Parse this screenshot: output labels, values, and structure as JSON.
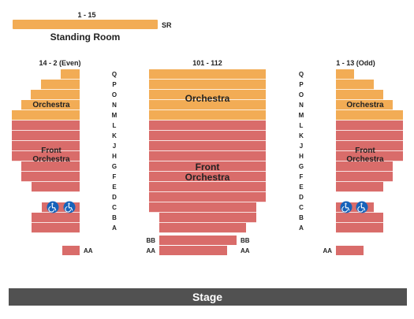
{
  "colors": {
    "orchestra": "#f2ac55",
    "front_orchestra": "#d96c6a",
    "stage": "#515151",
    "stage_text": "#ffffff",
    "label": "#222222",
    "wheelchair": "#1763ba"
  },
  "standing_room": {
    "range_label": "1 - 15",
    "name": "Standing Room",
    "code": "SR"
  },
  "sections": {
    "left": {
      "header": "14 - 2 (Even)",
      "orchestra_label": [
        "Orchestra"
      ],
      "front_label": [
        "Front",
        "Orchestra"
      ]
    },
    "center": {
      "header": "101 - 112",
      "orchestra_label": [
        "Orchestra"
      ],
      "front_label": [
        "Front",
        "Orchestra"
      ]
    },
    "right": {
      "header": "1 - 13 (Odd)",
      "orchestra_label": [
        "Orchestra"
      ],
      "front_label": [
        "Front",
        "Orchestra"
      ]
    }
  },
  "row_letters": [
    "Q",
    "P",
    "O",
    "N",
    "M",
    "L",
    "K",
    "J",
    "H",
    "G",
    "F",
    "E",
    "D",
    "C",
    "B",
    "A"
  ],
  "orchestra_rows": [
    "Q",
    "P",
    "O",
    "N",
    "M"
  ],
  "front_orchestra_rows": [
    "L",
    "K",
    "J",
    "H",
    "G",
    "F",
    "E",
    "D",
    "C",
    "B",
    "A"
  ],
  "rear_rows": {
    "bb": "BB",
    "aa": "AA"
  },
  "wheelchair_icon": "wheelchair-icon",
  "stage_label": "Stage"
}
